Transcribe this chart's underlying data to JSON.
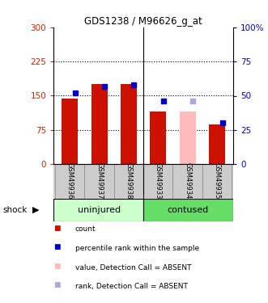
{
  "title": "GDS1238 / M96626_g_at",
  "samples": [
    "GSM49936",
    "GSM49937",
    "GSM49938",
    "GSM49933",
    "GSM49934",
    "GSM49935"
  ],
  "group_labels": [
    "uninjured",
    "contused"
  ],
  "count_values": [
    143,
    175,
    175,
    115,
    115,
    87
  ],
  "rank_values": [
    52,
    57,
    58,
    46,
    46,
    30
  ],
  "absent_flags": [
    false,
    false,
    false,
    false,
    true,
    false
  ],
  "left_ylim": [
    0,
    300
  ],
  "right_ylim": [
    0,
    100
  ],
  "left_yticks": [
    0,
    75,
    150,
    225,
    300
  ],
  "right_yticks": [
    0,
    25,
    50,
    75,
    100
  ],
  "right_yticklabels": [
    "0",
    "25",
    "50",
    "75",
    "100%"
  ],
  "bar_color_present": "#cc1100",
  "bar_color_absent": "#ffbbbb",
  "rank_color_present": "#0000cc",
  "rank_color_absent": "#aaaadd",
  "uninjured_bg": "#ccffcc",
  "contused_bg": "#66dd66",
  "sample_area_bg": "#cccccc",
  "plot_bg": "#ffffff",
  "shock_label": "shock",
  "legend_items": [
    {
      "label": "count",
      "color": "#cc1100"
    },
    {
      "label": "percentile rank within the sample",
      "color": "#0000cc"
    },
    {
      "label": "value, Detection Call = ABSENT",
      "color": "#ffbbbb"
    },
    {
      "label": "rank, Detection Call = ABSENT",
      "color": "#aaaadd"
    }
  ]
}
